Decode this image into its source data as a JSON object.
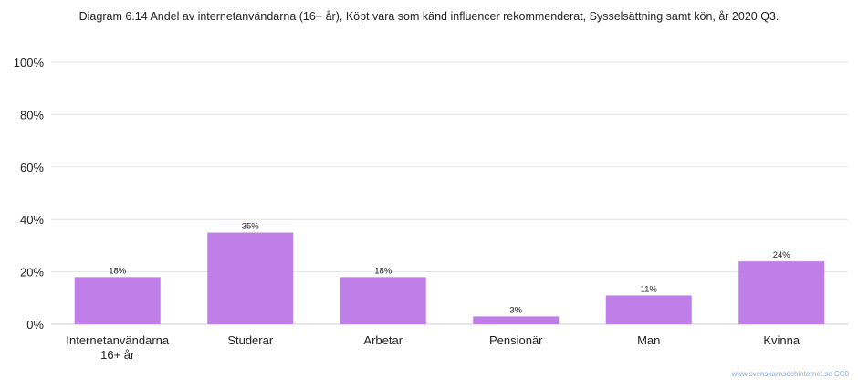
{
  "chart_data": {
    "type": "bar",
    "title": "Diagram 6.14 Andel av internetanvändarna (16+ år), Köpt vara som känd influencer rekommenderat, Sysselsättning samt kön, år 2020 Q3.",
    "categories": [
      [
        "Internetanvändarna",
        "16+ år"
      ],
      [
        "Studerar"
      ],
      [
        "Arbetar"
      ],
      [
        "Pensionär"
      ],
      [
        "Man"
      ],
      [
        "Kvinna"
      ]
    ],
    "values": [
      18,
      35,
      18,
      3,
      11,
      24
    ],
    "data_labels": [
      "18%",
      "35%",
      "18%",
      "3%",
      "11%",
      "24%"
    ],
    "yticks": [
      "0%",
      "20%",
      "40%",
      "60%",
      "80%",
      "100%"
    ],
    "ylim": [
      0,
      100
    ],
    "grid": true,
    "bar_color": "#c07ee8",
    "xlabel": "",
    "ylabel": ""
  },
  "source": "www.svenskarnaochinternet.se CC0"
}
